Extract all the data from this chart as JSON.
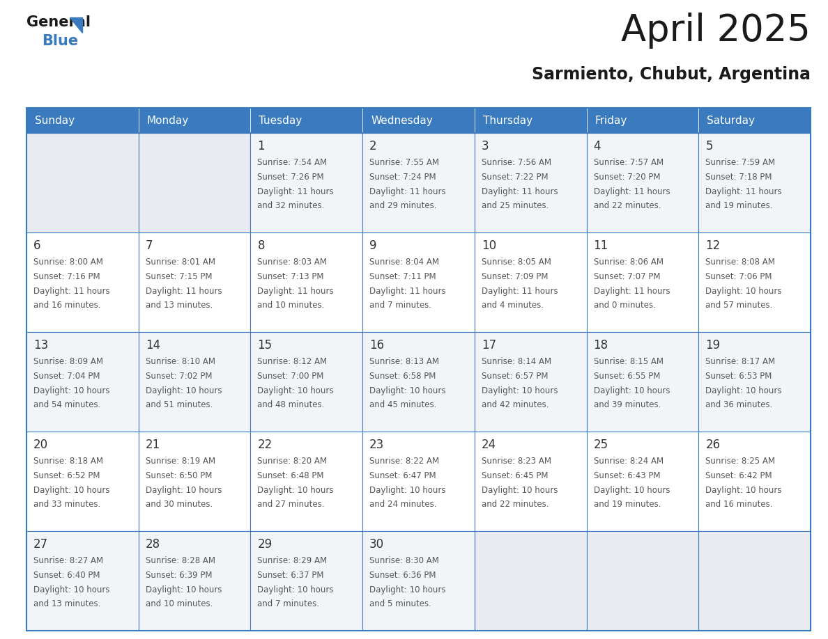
{
  "title": "April 2025",
  "subtitle": "Sarmiento, Chubut, Argentina",
  "header_bg": "#3a7bbf",
  "header_text": "#ffffff",
  "cell_bg": "#f2f5f8",
  "cell_bg_alt": "#ffffff",
  "empty_cell_bg": "#e8ecf0",
  "day_names": [
    "Sunday",
    "Monday",
    "Tuesday",
    "Wednesday",
    "Thursday",
    "Friday",
    "Saturday"
  ],
  "days": [
    {
      "date": 0,
      "col": 0,
      "row": 0,
      "sunrise": "",
      "sunset": "",
      "daylight1": "",
      "daylight2": ""
    },
    {
      "date": 0,
      "col": 1,
      "row": 0,
      "sunrise": "",
      "sunset": "",
      "daylight1": "",
      "daylight2": ""
    },
    {
      "date": 1,
      "col": 2,
      "row": 0,
      "sunrise": "Sunrise: 7:54 AM",
      "sunset": "Sunset: 7:26 PM",
      "daylight1": "Daylight: 11 hours",
      "daylight2": "and 32 minutes."
    },
    {
      "date": 2,
      "col": 3,
      "row": 0,
      "sunrise": "Sunrise: 7:55 AM",
      "sunset": "Sunset: 7:24 PM",
      "daylight1": "Daylight: 11 hours",
      "daylight2": "and 29 minutes."
    },
    {
      "date": 3,
      "col": 4,
      "row": 0,
      "sunrise": "Sunrise: 7:56 AM",
      "sunset": "Sunset: 7:22 PM",
      "daylight1": "Daylight: 11 hours",
      "daylight2": "and 25 minutes."
    },
    {
      "date": 4,
      "col": 5,
      "row": 0,
      "sunrise": "Sunrise: 7:57 AM",
      "sunset": "Sunset: 7:20 PM",
      "daylight1": "Daylight: 11 hours",
      "daylight2": "and 22 minutes."
    },
    {
      "date": 5,
      "col": 6,
      "row": 0,
      "sunrise": "Sunrise: 7:59 AM",
      "sunset": "Sunset: 7:18 PM",
      "daylight1": "Daylight: 11 hours",
      "daylight2": "and 19 minutes."
    },
    {
      "date": 6,
      "col": 0,
      "row": 1,
      "sunrise": "Sunrise: 8:00 AM",
      "sunset": "Sunset: 7:16 PM",
      "daylight1": "Daylight: 11 hours",
      "daylight2": "and 16 minutes."
    },
    {
      "date": 7,
      "col": 1,
      "row": 1,
      "sunrise": "Sunrise: 8:01 AM",
      "sunset": "Sunset: 7:15 PM",
      "daylight1": "Daylight: 11 hours",
      "daylight2": "and 13 minutes."
    },
    {
      "date": 8,
      "col": 2,
      "row": 1,
      "sunrise": "Sunrise: 8:03 AM",
      "sunset": "Sunset: 7:13 PM",
      "daylight1": "Daylight: 11 hours",
      "daylight2": "and 10 minutes."
    },
    {
      "date": 9,
      "col": 3,
      "row": 1,
      "sunrise": "Sunrise: 8:04 AM",
      "sunset": "Sunset: 7:11 PM",
      "daylight1": "Daylight: 11 hours",
      "daylight2": "and 7 minutes."
    },
    {
      "date": 10,
      "col": 4,
      "row": 1,
      "sunrise": "Sunrise: 8:05 AM",
      "sunset": "Sunset: 7:09 PM",
      "daylight1": "Daylight: 11 hours",
      "daylight2": "and 4 minutes."
    },
    {
      "date": 11,
      "col": 5,
      "row": 1,
      "sunrise": "Sunrise: 8:06 AM",
      "sunset": "Sunset: 7:07 PM",
      "daylight1": "Daylight: 11 hours",
      "daylight2": "and 0 minutes."
    },
    {
      "date": 12,
      "col": 6,
      "row": 1,
      "sunrise": "Sunrise: 8:08 AM",
      "sunset": "Sunset: 7:06 PM",
      "daylight1": "Daylight: 10 hours",
      "daylight2": "and 57 minutes."
    },
    {
      "date": 13,
      "col": 0,
      "row": 2,
      "sunrise": "Sunrise: 8:09 AM",
      "sunset": "Sunset: 7:04 PM",
      "daylight1": "Daylight: 10 hours",
      "daylight2": "and 54 minutes."
    },
    {
      "date": 14,
      "col": 1,
      "row": 2,
      "sunrise": "Sunrise: 8:10 AM",
      "sunset": "Sunset: 7:02 PM",
      "daylight1": "Daylight: 10 hours",
      "daylight2": "and 51 minutes."
    },
    {
      "date": 15,
      "col": 2,
      "row": 2,
      "sunrise": "Sunrise: 8:12 AM",
      "sunset": "Sunset: 7:00 PM",
      "daylight1": "Daylight: 10 hours",
      "daylight2": "and 48 minutes."
    },
    {
      "date": 16,
      "col": 3,
      "row": 2,
      "sunrise": "Sunrise: 8:13 AM",
      "sunset": "Sunset: 6:58 PM",
      "daylight1": "Daylight: 10 hours",
      "daylight2": "and 45 minutes."
    },
    {
      "date": 17,
      "col": 4,
      "row": 2,
      "sunrise": "Sunrise: 8:14 AM",
      "sunset": "Sunset: 6:57 PM",
      "daylight1": "Daylight: 10 hours",
      "daylight2": "and 42 minutes."
    },
    {
      "date": 18,
      "col": 5,
      "row": 2,
      "sunrise": "Sunrise: 8:15 AM",
      "sunset": "Sunset: 6:55 PM",
      "daylight1": "Daylight: 10 hours",
      "daylight2": "and 39 minutes."
    },
    {
      "date": 19,
      "col": 6,
      "row": 2,
      "sunrise": "Sunrise: 8:17 AM",
      "sunset": "Sunset: 6:53 PM",
      "daylight1": "Daylight: 10 hours",
      "daylight2": "and 36 minutes."
    },
    {
      "date": 20,
      "col": 0,
      "row": 3,
      "sunrise": "Sunrise: 8:18 AM",
      "sunset": "Sunset: 6:52 PM",
      "daylight1": "Daylight: 10 hours",
      "daylight2": "and 33 minutes."
    },
    {
      "date": 21,
      "col": 1,
      "row": 3,
      "sunrise": "Sunrise: 8:19 AM",
      "sunset": "Sunset: 6:50 PM",
      "daylight1": "Daylight: 10 hours",
      "daylight2": "and 30 minutes."
    },
    {
      "date": 22,
      "col": 2,
      "row": 3,
      "sunrise": "Sunrise: 8:20 AM",
      "sunset": "Sunset: 6:48 PM",
      "daylight1": "Daylight: 10 hours",
      "daylight2": "and 27 minutes."
    },
    {
      "date": 23,
      "col": 3,
      "row": 3,
      "sunrise": "Sunrise: 8:22 AM",
      "sunset": "Sunset: 6:47 PM",
      "daylight1": "Daylight: 10 hours",
      "daylight2": "and 24 minutes."
    },
    {
      "date": 24,
      "col": 4,
      "row": 3,
      "sunrise": "Sunrise: 8:23 AM",
      "sunset": "Sunset: 6:45 PM",
      "daylight1": "Daylight: 10 hours",
      "daylight2": "and 22 minutes."
    },
    {
      "date": 25,
      "col": 5,
      "row": 3,
      "sunrise": "Sunrise: 8:24 AM",
      "sunset": "Sunset: 6:43 PM",
      "daylight1": "Daylight: 10 hours",
      "daylight2": "and 19 minutes."
    },
    {
      "date": 26,
      "col": 6,
      "row": 3,
      "sunrise": "Sunrise: 8:25 AM",
      "sunset": "Sunset: 6:42 PM",
      "daylight1": "Daylight: 10 hours",
      "daylight2": "and 16 minutes."
    },
    {
      "date": 27,
      "col": 0,
      "row": 4,
      "sunrise": "Sunrise: 8:27 AM",
      "sunset": "Sunset: 6:40 PM",
      "daylight1": "Daylight: 10 hours",
      "daylight2": "and 13 minutes."
    },
    {
      "date": 28,
      "col": 1,
      "row": 4,
      "sunrise": "Sunrise: 8:28 AM",
      "sunset": "Sunset: 6:39 PM",
      "daylight1": "Daylight: 10 hours",
      "daylight2": "and 10 minutes."
    },
    {
      "date": 29,
      "col": 2,
      "row": 4,
      "sunrise": "Sunrise: 8:29 AM",
      "sunset": "Sunset: 6:37 PM",
      "daylight1": "Daylight: 10 hours",
      "daylight2": "and 7 minutes."
    },
    {
      "date": 30,
      "col": 3,
      "row": 4,
      "sunrise": "Sunrise: 8:30 AM",
      "sunset": "Sunset: 6:36 PM",
      "daylight1": "Daylight: 10 hours",
      "daylight2": "and 5 minutes."
    },
    {
      "date": 0,
      "col": 4,
      "row": 4,
      "sunrise": "",
      "sunset": "",
      "daylight1": "",
      "daylight2": ""
    },
    {
      "date": 0,
      "col": 5,
      "row": 4,
      "sunrise": "",
      "sunset": "",
      "daylight1": "",
      "daylight2": ""
    },
    {
      "date": 0,
      "col": 6,
      "row": 4,
      "sunrise": "",
      "sunset": "",
      "daylight1": "",
      "daylight2": ""
    }
  ],
  "num_rows": 5,
  "num_cols": 7,
  "grid_line_color": "#3a7bbf",
  "date_color": "#333333",
  "text_color": "#555555",
  "title_fontsize": 38,
  "subtitle_fontsize": 17,
  "dayname_fontsize": 11,
  "date_fontsize": 12,
  "cell_fontsize": 8.5
}
